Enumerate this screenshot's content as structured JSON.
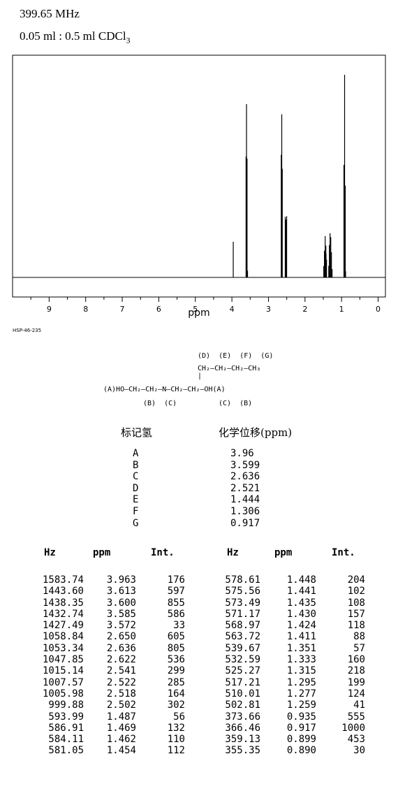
{
  "header": {
    "frequency": "399.65 MHz",
    "sample_main": "0.05 ml : 0.5 ml CDCl",
    "sample_sub": "3"
  },
  "chart_data": {
    "type": "line",
    "xlabel": "ppm",
    "x_ticks": [
      "9",
      "8",
      "7",
      "6",
      "5",
      "4",
      "3",
      "2",
      "1",
      "0"
    ],
    "xlim": [
      10.0,
      -0.2
    ],
    "x_reversed": true,
    "code": "HSP-46-235",
    "peaks": [
      {
        "ppm": 3.963,
        "int": 176
      },
      {
        "ppm": 3.613,
        "int": 597
      },
      {
        "ppm": 3.6,
        "int": 855
      },
      {
        "ppm": 3.585,
        "int": 586
      },
      {
        "ppm": 3.572,
        "int": 33
      },
      {
        "ppm": 2.65,
        "int": 605
      },
      {
        "ppm": 2.636,
        "int": 805
      },
      {
        "ppm": 2.622,
        "int": 536
      },
      {
        "ppm": 2.541,
        "int": 299
      },
      {
        "ppm": 2.522,
        "int": 285
      },
      {
        "ppm": 2.518,
        "int": 164
      },
      {
        "ppm": 2.502,
        "int": 302
      },
      {
        "ppm": 1.487,
        "int": 56
      },
      {
        "ppm": 1.469,
        "int": 132
      },
      {
        "ppm": 1.462,
        "int": 110
      },
      {
        "ppm": 1.454,
        "int": 112
      },
      {
        "ppm": 1.448,
        "int": 204
      },
      {
        "ppm": 1.441,
        "int": 102
      },
      {
        "ppm": 1.435,
        "int": 108
      },
      {
        "ppm": 1.43,
        "int": 157
      },
      {
        "ppm": 1.424,
        "int": 118
      },
      {
        "ppm": 1.411,
        "int": 88
      },
      {
        "ppm": 1.351,
        "int": 57
      },
      {
        "ppm": 1.333,
        "int": 160
      },
      {
        "ppm": 1.315,
        "int": 218
      },
      {
        "ppm": 1.295,
        "int": 199
      },
      {
        "ppm": 1.277,
        "int": 124
      },
      {
        "ppm": 1.259,
        "int": 41
      },
      {
        "ppm": 0.935,
        "int": 555
      },
      {
        "ppm": 0.917,
        "int": 1000
      },
      {
        "ppm": 0.899,
        "int": 453
      },
      {
        "ppm": 0.89,
        "int": 30
      }
    ]
  },
  "structure": {
    "line1": "(D)  (E)  (F)  (G)",
    "line2": "CH₂—CH₂—CH₂—CH₃",
    "line4": "(A)HO—CH₂—CH₂—N—CH₂—CH₂—OH(A)",
    "line5a": "(B)  (C)",
    "line5b": "(C)  (B)"
  },
  "shift_table": {
    "head_label": "标记氢",
    "head_shift": "化学位移(ppm)",
    "labels": [
      "A",
      "B",
      "C",
      "D",
      "E",
      "F",
      "G"
    ],
    "shifts": [
      "3.96",
      "3.599",
      "2.636",
      "2.521",
      "1.444",
      "1.306",
      "0.917"
    ]
  },
  "peak_table": {
    "headers": [
      "Hz",
      "ppm",
      "Int.",
      "Hz",
      "ppm",
      "Int."
    ],
    "left": {
      "hz": [
        "1583.74",
        "1443.60",
        "1438.35",
        "1432.74",
        "1427.49",
        "1058.84",
        "1053.34",
        "1047.85",
        "1015.14",
        "1007.57",
        "1005.98",
        "999.88",
        "593.99",
        "586.91",
        "584.11",
        "581.05"
      ],
      "ppm": [
        "3.963",
        "3.613",
        "3.600",
        "3.585",
        "3.572",
        "2.650",
        "2.636",
        "2.622",
        "2.541",
        "2.522",
        "2.518",
        "2.502",
        "1.487",
        "1.469",
        "1.462",
        "1.454"
      ],
      "int": [
        "176",
        "597",
        "855",
        "586",
        "33",
        "605",
        "805",
        "536",
        "299",
        "285",
        "164",
        "302",
        "56",
        "132",
        "110",
        "112"
      ]
    },
    "right": {
      "hz": [
        "578.61",
        "575.56",
        "573.49",
        "571.17",
        "568.97",
        "563.72",
        "539.67",
        "532.59",
        "525.27",
        "517.21",
        "510.01",
        "502.81",
        "373.66",
        "366.46",
        "359.13",
        "355.35"
      ],
      "ppm": [
        "1.448",
        "1.441",
        "1.435",
        "1.430",
        "1.424",
        "1.411",
        "1.351",
        "1.333",
        "1.315",
        "1.295",
        "1.277",
        "1.259",
        "0.935",
        "0.917",
        "0.899",
        "0.890"
      ],
      "int": [
        "204",
        "102",
        "108",
        "157",
        "118",
        "88",
        "57",
        "160",
        "218",
        "199",
        "124",
        "41",
        "555",
        "1000",
        "453",
        "30"
      ]
    }
  }
}
